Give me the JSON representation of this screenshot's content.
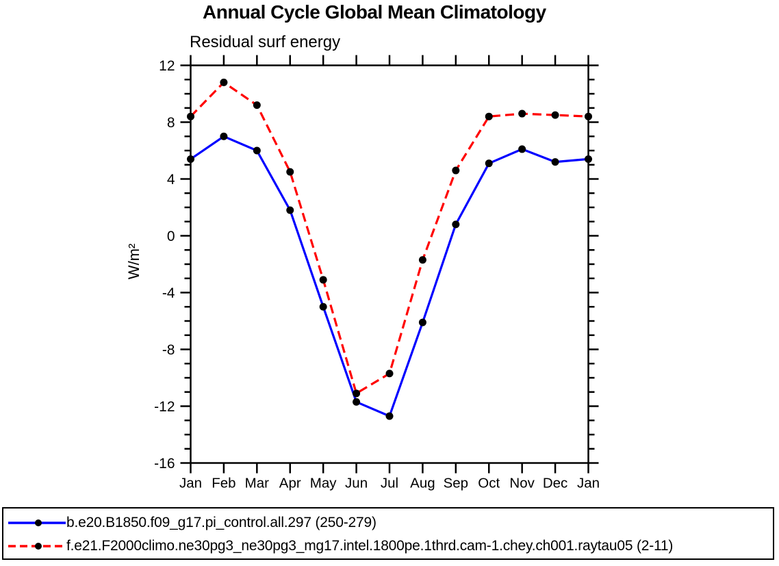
{
  "title": "Annual Cycle Global Mean Climatology",
  "subtitle": "Residual surf energy",
  "chart_data": {
    "type": "line",
    "x_categories": [
      "Jan",
      "Feb",
      "Mar",
      "Apr",
      "May",
      "Jun",
      "Jul",
      "Aug",
      "Sep",
      "Oct",
      "Nov",
      "Dec",
      "Jan"
    ],
    "ylabel": "W/m²",
    "ylim": [
      -16,
      12
    ],
    "y_major_ticks": [
      -16,
      -12,
      -8,
      -4,
      0,
      4,
      8,
      12
    ],
    "y_minor_step": 1,
    "grid": false,
    "legend_position": "bottom-left-box",
    "frame_color": "#000000",
    "marker": "filled-circle",
    "marker_color": "#000000",
    "series": [
      {
        "name": "b.e20.B1850.f09_g17.pi_control.all.297 (250-279)",
        "color": "#0000ff",
        "style": "solid",
        "values": [
          5.4,
          7.0,
          6.0,
          1.8,
          -5.0,
          -11.7,
          -12.7,
          -6.1,
          0.8,
          5.1,
          6.1,
          5.2,
          5.4
        ]
      },
      {
        "name": "f.e21.F2000climo.ne30pg3_ne30pg3_mg17.intel.1800pe.1thrd.cam-1.chey.ch001.raytau05 (2-11)",
        "color": "#ff0000",
        "style": "dashed",
        "values": [
          8.4,
          10.8,
          9.2,
          4.5,
          -3.1,
          -11.1,
          -9.7,
          -1.7,
          4.6,
          8.4,
          8.6,
          8.5,
          8.4
        ]
      }
    ]
  }
}
